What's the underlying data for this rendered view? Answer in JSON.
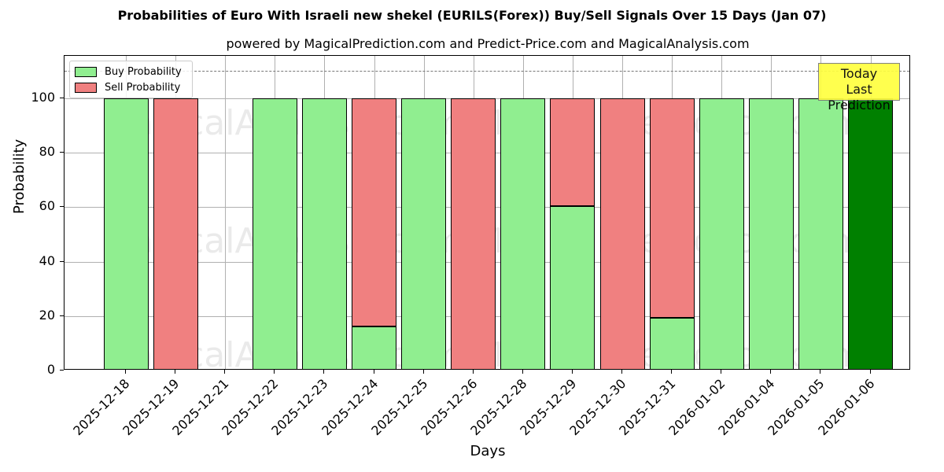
{
  "chart_data": {
    "type": "bar",
    "stacked": true,
    "title": "Probabilities of Euro With Israeli new shekel (EURILS(Forex)) Buy/Sell Signals Over 15 Days (Jan 07)",
    "subtitle": "powered by MagicalPrediction.com and Predict-Price.com and MagicalAnalysis.com",
    "xlabel": "Days",
    "ylabel": "Probability",
    "ylim": [
      0,
      115
    ],
    "yticks": [
      0,
      20,
      40,
      60,
      80,
      100
    ],
    "grid": true,
    "legend_position": "upper left",
    "categories": [
      "2025-12-18",
      "2025-12-19",
      "2025-12-21",
      "2025-12-22",
      "2025-12-23",
      "2025-12-24",
      "2025-12-25",
      "2025-12-26",
      "2025-12-28",
      "2025-12-29",
      "2025-12-30",
      "2025-12-31",
      "2026-01-02",
      "2026-01-04",
      "2026-01-05",
      "2026-01-06"
    ],
    "series": [
      {
        "name": "Buy Probability",
        "color": "#90ee90",
        "values": [
          100,
          0,
          0,
          100,
          100,
          16.2,
          100,
          0,
          100,
          60.4,
          0,
          19.4,
          100,
          100,
          100,
          100
        ]
      },
      {
        "name": "Sell Probability",
        "color": "#f08080",
        "values": [
          0,
          100,
          0,
          0,
          0,
          83.8,
          0,
          100,
          0,
          39.6,
          100,
          80.6,
          0,
          0,
          0,
          0
        ]
      }
    ],
    "highlight": {
      "category": "2026-01-06",
      "color": "#008000"
    },
    "reference_line": {
      "y": 110,
      "style": "dashed"
    },
    "annotation": {
      "text_line1": "Today",
      "text_line2": "Last Prediction",
      "background": "#ffff40"
    },
    "watermarks": [
      "MagicalAnalysis.com",
      "MagicalPrediction.com"
    ]
  }
}
